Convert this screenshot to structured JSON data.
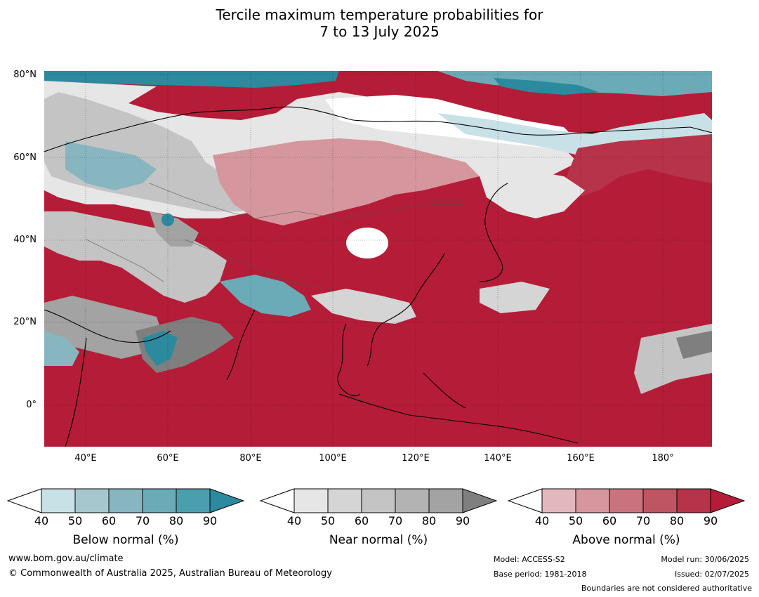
{
  "title": {
    "line1": "Tercile maximum temperature probabilities for",
    "line2": "7 to 13 July 2025"
  },
  "map": {
    "lat_labels": [
      "80°N",
      "60°N",
      "40°N",
      "20°N",
      "0°"
    ],
    "lon_labels": [
      "40°E",
      "60°E",
      "80°E",
      "100°E",
      "120°E",
      "140°E",
      "160°E",
      "180°"
    ],
    "extent": {
      "lon_min": 30,
      "lon_max": 192,
      "lat_min": -10,
      "lat_max": 81
    },
    "background_category": "Above normal, 90%"
  },
  "legend": {
    "below": {
      "label": "Below normal (%)",
      "ticks": [
        "40",
        "50",
        "60",
        "70",
        "80",
        "90"
      ],
      "colors": [
        "#c8e1e7",
        "#a7c7cf",
        "#88b6c0",
        "#6aabb7",
        "#4b9eae",
        "#2b8a9e"
      ]
    },
    "near": {
      "label": "Near normal (%)",
      "ticks": [
        "40",
        "50",
        "60",
        "70",
        "80",
        "90"
      ],
      "colors": [
        "#e6e6e6",
        "#d5d5d5",
        "#c4c4c4",
        "#b3b3b3",
        "#a3a3a3",
        "#7f7f7f"
      ]
    },
    "above": {
      "label": "Above normal (%)",
      "ticks": [
        "40",
        "50",
        "60",
        "70",
        "80",
        "90"
      ],
      "colors": [
        "#e2b7bd",
        "#d6969e",
        "#c9737e",
        "#bd5563",
        "#b7334a",
        "#b51c37"
      ]
    }
  },
  "footer": {
    "url": "www.bom.gov.au/climate",
    "copyright": "© Commonwealth of Australia 2025, Australian Bureau of Meteorology",
    "model": "Model: ACCESS-S2",
    "base_period": "Base period: 1981-2018",
    "model_run": "Model run: 30/06/2025",
    "issued": "Issued: 02/07/2025",
    "disclaimer": "Boundaries are not considered authoritative"
  }
}
